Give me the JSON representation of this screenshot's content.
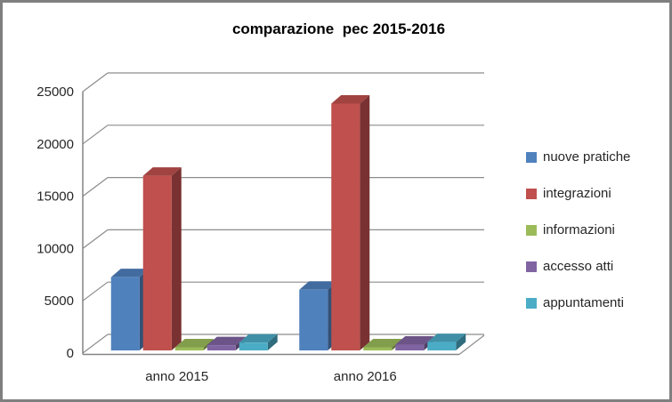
{
  "window": {
    "background": "#FFFFFF",
    "border_color": "#7F7F7F"
  },
  "chart_data": {
    "type": "bar",
    "style": "3d-column",
    "title": "comparazione  pec 2015-2016",
    "categories": [
      "anno 2015",
      "anno 2016"
    ],
    "series": [
      {
        "name": "nuove pratiche",
        "color": "#4F81BD",
        "values": [
          7000,
          5800
        ]
      },
      {
        "name": "integrazioni",
        "color": "#C0504D",
        "values": [
          16700,
          23600
        ]
      },
      {
        "name": "informazioni",
        "color": "#9BBB59",
        "values": [
          300,
          300
        ]
      },
      {
        "name": "accesso atti",
        "color": "#8064A2",
        "values": [
          500,
          550
        ]
      },
      {
        "name": "appuntamenti",
        "color": "#4BACC6",
        "values": [
          750,
          800
        ]
      }
    ],
    "ylim": [
      0,
      25000
    ],
    "y_ticks": [
      0,
      5000,
      10000,
      15000,
      20000,
      25000
    ],
    "y_tick_labels": [
      "0",
      "5000",
      "10000",
      "15000",
      "20000",
      "25000"
    ],
    "grid": true,
    "legend_position": "right",
    "colors": {
      "gridline": "#8C8C8C",
      "axis_text": "#262626",
      "title_text": "#000000"
    }
  }
}
